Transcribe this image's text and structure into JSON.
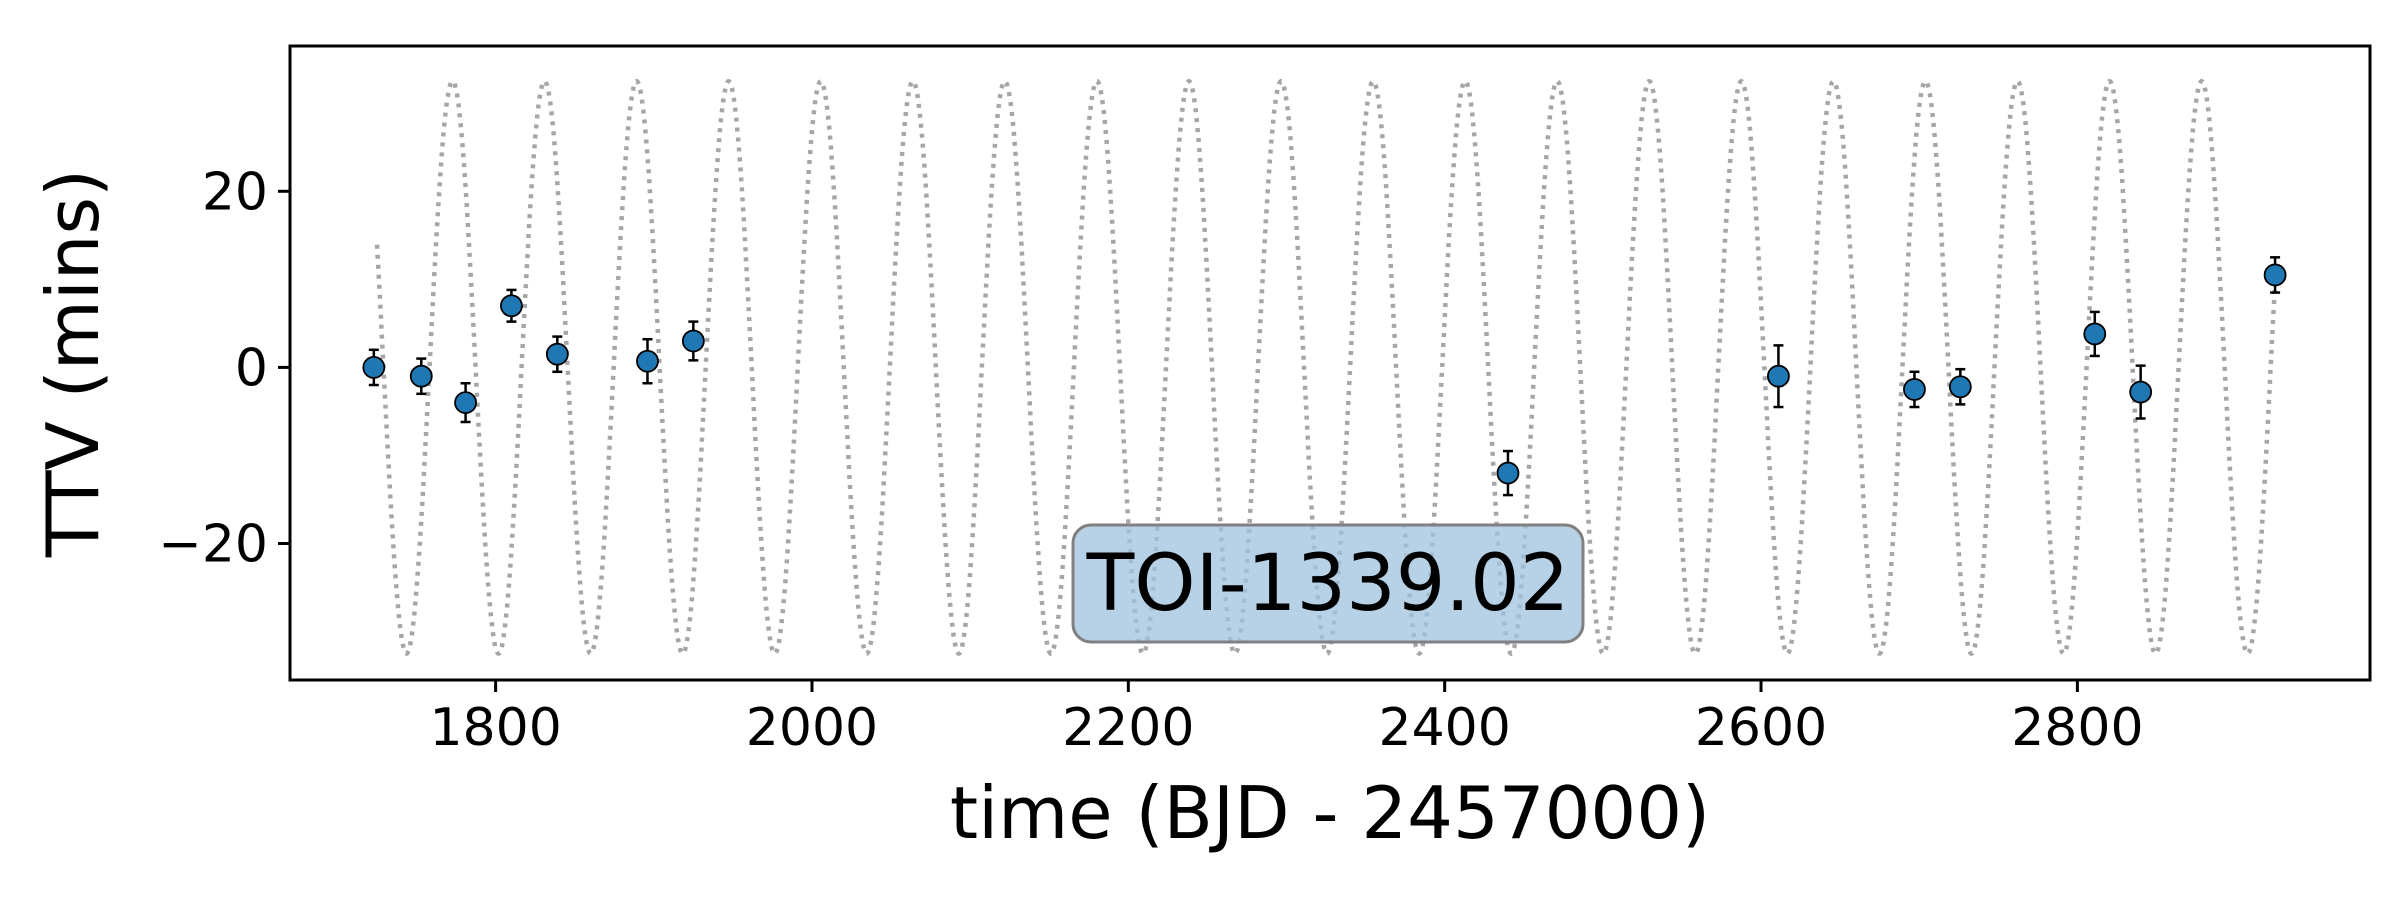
{
  "chart_data": {
    "type": "scatter",
    "xlabel": "time (BJD - 2457000)",
    "ylabel": "TTV (mins)",
    "xlim": [
      1670,
      2985
    ],
    "ylim": [
      -35.5,
      36.5
    ],
    "xticks": [
      1800,
      2000,
      2200,
      2400,
      2600,
      2800
    ],
    "yticks": [
      -20,
      0,
      20
    ],
    "ytick_labels": [
      "−20",
      "0",
      "20"
    ],
    "grid": false,
    "annotation": "TOI-1339.02",
    "model": {
      "style": "dotted",
      "color": "#a6a6a6",
      "amplitude": 32.5,
      "period_days": 58.2,
      "phase_ref_time": 1700,
      "x_range": [
        1725,
        2925
      ]
    },
    "series": [
      {
        "marker_color": "#1f77b4",
        "points": [
          {
            "x": 1723,
            "y": 0.0,
            "err": 2.0
          },
          {
            "x": 1753,
            "y": -1.0,
            "err": 2.0
          },
          {
            "x": 1781,
            "y": -4.0,
            "err": 2.2
          },
          {
            "x": 1810,
            "y": 7.0,
            "err": 1.8
          },
          {
            "x": 1839,
            "y": 1.5,
            "err": 2.0
          },
          {
            "x": 1896,
            "y": 0.7,
            "err": 2.5
          },
          {
            "x": 1925,
            "y": 3.0,
            "err": 2.2
          },
          {
            "x": 2440,
            "y": -12.0,
            "err": 2.5
          },
          {
            "x": 2611,
            "y": -1.0,
            "err": 3.5
          },
          {
            "x": 2697,
            "y": -2.5,
            "err": 2.0
          },
          {
            "x": 2726,
            "y": -2.2,
            "err": 2.0
          },
          {
            "x": 2811,
            "y": 3.8,
            "err": 2.5
          },
          {
            "x": 2840,
            "y": -2.8,
            "err": 3.0
          },
          {
            "x": 2925,
            "y": 10.5,
            "err": 2.0
          }
        ]
      }
    ]
  }
}
